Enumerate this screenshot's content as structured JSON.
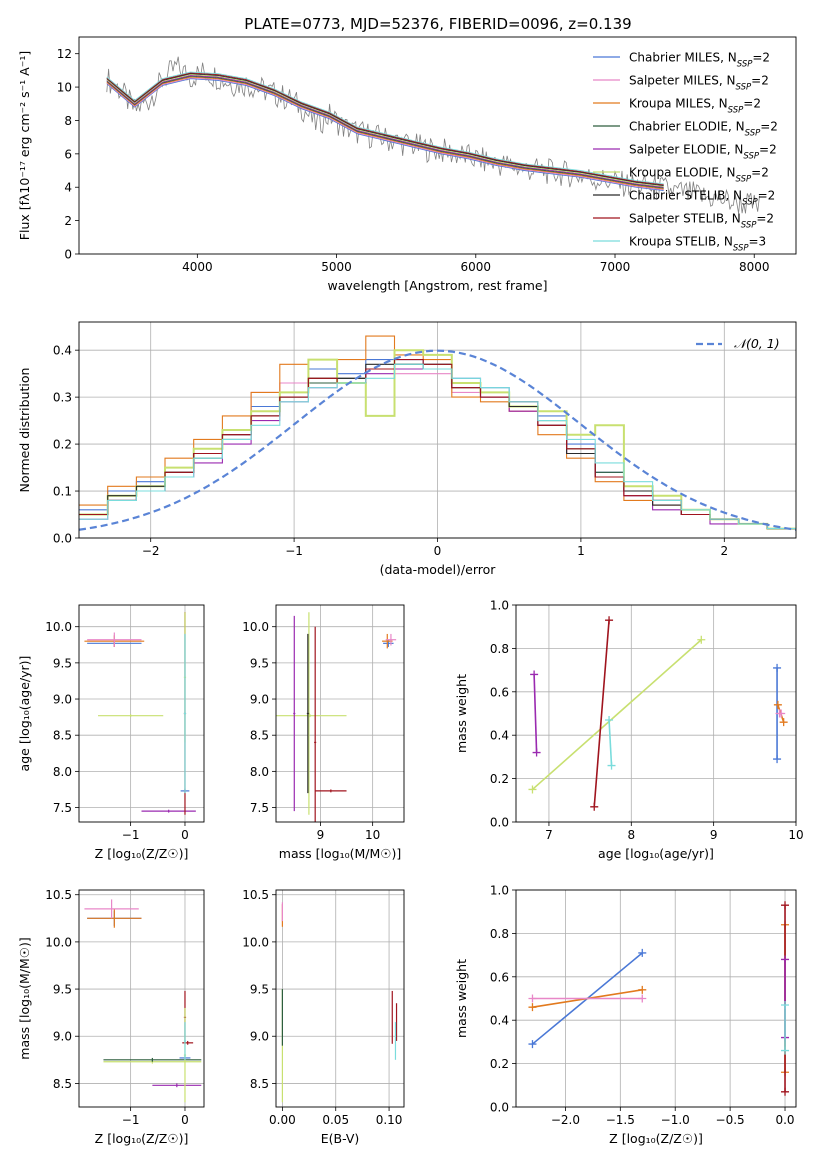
{
  "figure_title": "PLATE=0773, MJD=52376, FIBERID=0096, z=0.139",
  "model_colors": [
    "#4a78d6",
    "#e887c8",
    "#e27a1e",
    "#2e5e3e",
    "#9a2ab0",
    "#c8e070",
    "#2a2a2a",
    "#a0141e",
    "#7adcdc"
  ],
  "chart_data": [
    {
      "id": "spectrum",
      "type": "line",
      "xlabel": "wavelength [Angstrom, rest frame]",
      "ylabel": "Flux [fλ10⁻¹⁷ erg cm⁻² s⁻¹ A⁻¹]",
      "xlim": [
        3150,
        8300
      ],
      "ylim": [
        0,
        13
      ],
      "xticks": [
        4000,
        5000,
        6000,
        7000,
        8000
      ],
      "yticks": [
        0,
        2,
        4,
        6,
        8,
        10,
        12
      ],
      "grid": false,
      "legend_position": "top-right",
      "data_color": "#808080",
      "data_x": [
        3350,
        3450,
        3550,
        3650,
        3750,
        3850,
        3950,
        4050,
        4150,
        4250,
        4350,
        4450,
        4550,
        4650,
        4750,
        4850,
        4950,
        5050,
        5150,
        5250,
        5350,
        5450,
        5550,
        5650,
        5750,
        5850,
        5950,
        6050,
        6150,
        6250,
        6350,
        6450,
        6550,
        6650,
        6750,
        6850,
        6950,
        7050,
        7150,
        7250,
        7350,
        7450,
        7550,
        7650,
        7750,
        7850,
        7950,
        8050
      ],
      "data_y": [
        10.5,
        9.8,
        8.6,
        9.2,
        10.4,
        11.2,
        10.6,
        10.9,
        10.6,
        10.2,
        10.2,
        9.9,
        9.6,
        9.3,
        8.8,
        7.8,
        8.3,
        7.6,
        7.3,
        7.1,
        6.9,
        6.7,
        6.5,
        6.3,
        6.2,
        6.0,
        5.8,
        5.6,
        5.4,
        5.3,
        5.1,
        5.0,
        4.9,
        4.8,
        4.7,
        4.5,
        4.4,
        4.2,
        4.1,
        4.0,
        3.9,
        3.7,
        3.6,
        3.4,
        3.3,
        3.1,
        3.0,
        2.8
      ],
      "model_x": [
        3350,
        3550,
        3750,
        3950,
        4150,
        4350,
        4550,
        4750,
        4950,
        5150,
        5350,
        5550,
        5750,
        5950,
        6150,
        6350,
        6550,
        6750,
        6950,
        7150,
        7350
      ],
      "model_y": [
        10.4,
        9.0,
        10.3,
        10.7,
        10.6,
        10.3,
        9.7,
        8.9,
        8.3,
        7.4,
        7.0,
        6.6,
        6.2,
        5.9,
        5.5,
        5.2,
        5.0,
        4.8,
        4.5,
        4.2,
        4.0
      ],
      "series": [
        {
          "name": "Chabrier MILES, N",
          "sub": "SSP",
          "suffix": "=2"
        },
        {
          "name": "Salpeter MILES, N",
          "sub": "SSP",
          "suffix": "=2"
        },
        {
          "name": "Kroupa MILES, N",
          "sub": "SSP",
          "suffix": "=2"
        },
        {
          "name": "Chabrier ELODIE, N",
          "sub": "SSP",
          "suffix": "=2"
        },
        {
          "name": "Salpeter ELODIE, N",
          "sub": "SSP",
          "suffix": "=2"
        },
        {
          "name": "Kroupa ELODIE, N",
          "sub": "SSP",
          "suffix": "=2"
        },
        {
          "name": "Chabrier STELIB, N",
          "sub": "SSP",
          "suffix": "=2"
        },
        {
          "name": "Salpeter STELIB, N",
          "sub": "SSP",
          "suffix": "=2"
        },
        {
          "name": "Kroupa STELIB, N",
          "sub": "SSP",
          "suffix": "=3"
        }
      ]
    },
    {
      "id": "residuals",
      "type": "line",
      "xlabel": "(data-model)/error",
      "ylabel": "Normed distribution",
      "xlim": [
        -2.5,
        2.5
      ],
      "ylim": [
        0,
        0.46
      ],
      "xticks": [
        -2,
        -1,
        0,
        1,
        2
      ],
      "yticks": [
        0.0,
        0.1,
        0.2,
        0.3,
        0.4
      ],
      "grid": true,
      "legend_position": "top-right",
      "gaussian_label": "𝒩(0, 1)",
      "gaussian_color": "#5a84d6",
      "bin_edges": [
        -2.5,
        -2.3,
        -2.1,
        -1.9,
        -1.7,
        -1.5,
        -1.3,
        -1.1,
        -0.9,
        -0.7,
        -0.5,
        -0.3,
        -0.1,
        0.1,
        0.3,
        0.5,
        0.7,
        0.9,
        1.1,
        1.3,
        1.5,
        1.7,
        1.9,
        2.1,
        2.3,
        2.5
      ],
      "hist": [
        [
          0.06,
          0.1,
          0.12,
          0.15,
          0.19,
          0.23,
          0.28,
          0.31,
          0.36,
          0.35,
          0.38,
          0.38,
          0.37,
          0.34,
          0.32,
          0.29,
          0.26,
          0.2,
          0.14,
          0.1,
          0.08,
          0.06,
          0.04,
          0.03,
          0.02
        ],
        [
          0.05,
          0.09,
          0.11,
          0.14,
          0.18,
          0.22,
          0.31,
          0.33,
          0.34,
          0.34,
          0.36,
          0.35,
          0.35,
          0.31,
          0.3,
          0.27,
          0.24,
          0.18,
          0.13,
          0.09,
          0.07,
          0.05,
          0.04,
          0.03,
          0.02
        ],
        [
          0.07,
          0.11,
          0.13,
          0.17,
          0.21,
          0.26,
          0.31,
          0.37,
          0.34,
          0.38,
          0.43,
          0.39,
          0.38,
          0.3,
          0.29,
          0.27,
          0.22,
          0.17,
          0.12,
          0.08,
          0.07,
          0.05,
          0.04,
          0.03,
          0.02
        ],
        [
          0.05,
          0.08,
          0.1,
          0.14,
          0.17,
          0.21,
          0.26,
          0.3,
          0.33,
          0.34,
          0.36,
          0.37,
          0.37,
          0.33,
          0.31,
          0.28,
          0.25,
          0.19,
          0.14,
          0.1,
          0.08,
          0.06,
          0.04,
          0.03,
          0.02
        ],
        [
          0.04,
          0.08,
          0.1,
          0.13,
          0.16,
          0.2,
          0.25,
          0.29,
          0.32,
          0.33,
          0.35,
          0.36,
          0.36,
          0.33,
          0.3,
          0.27,
          0.24,
          0.18,
          0.13,
          0.09,
          0.06,
          0.05,
          0.03,
          0.03,
          0.02
        ],
        [
          0.05,
          0.09,
          0.11,
          0.15,
          0.19,
          0.23,
          0.27,
          0.31,
          0.38,
          0.33,
          0.26,
          0.4,
          0.39,
          0.33,
          0.31,
          0.28,
          0.27,
          0.22,
          0.24,
          0.11,
          0.09,
          0.06,
          0.04,
          0.03,
          0.02
        ],
        [
          0.05,
          0.09,
          0.11,
          0.14,
          0.18,
          0.22,
          0.26,
          0.3,
          0.34,
          0.34,
          0.37,
          0.37,
          0.36,
          0.32,
          0.3,
          0.28,
          0.24,
          0.18,
          0.13,
          0.1,
          0.07,
          0.05,
          0.04,
          0.03,
          0.02
        ],
        [
          0.05,
          0.08,
          0.1,
          0.14,
          0.18,
          0.22,
          0.26,
          0.3,
          0.34,
          0.33,
          0.36,
          0.38,
          0.37,
          0.32,
          0.3,
          0.29,
          0.24,
          0.19,
          0.13,
          0.09,
          0.08,
          0.05,
          0.04,
          0.03,
          0.02
        ],
        [
          0.04,
          0.08,
          0.1,
          0.13,
          0.17,
          0.21,
          0.24,
          0.29,
          0.32,
          0.33,
          0.34,
          0.37,
          0.36,
          0.34,
          0.32,
          0.29,
          0.25,
          0.21,
          0.16,
          0.12,
          0.08,
          0.06,
          0.04,
          0.03,
          0.02
        ]
      ]
    },
    {
      "id": "z-age",
      "type": "scatter",
      "xlabel": "Z [log₁₀(Z/Z☉)]",
      "ylabel": "age  [log₁₀(age/yr)]",
      "xlim": [
        -1.95,
        0.35
      ],
      "ylim": [
        7.3,
        10.3
      ],
      "xticks": [
        -1,
        0
      ],
      "yticks": [
        7.5,
        8.0,
        8.5,
        9.0,
        9.5,
        10.0
      ],
      "grid": true,
      "points": [
        {
          "series": 0,
          "x": -1.3,
          "y": 9.77,
          "xerr": 0.5,
          "yerr": 0.05
        },
        {
          "series": 2,
          "x": -1.3,
          "y": 9.8,
          "xerr": 0.55,
          "yerr": 0.08
        },
        {
          "series": 1,
          "x": -1.3,
          "y": 9.82,
          "xerr": 0.5,
          "yerr": 0.1
        },
        {
          "series": 5,
          "x": -1.0,
          "y": 8.77,
          "xerr": 0.6,
          "yerr": 0.02
        },
        {
          "series": 4,
          "x": -0.3,
          "y": 7.45,
          "xerr": 0.5,
          "yerr": 0.02
        },
        {
          "series": 0,
          "x": 0.0,
          "y": 7.73,
          "xerr": 0.08,
          "yerr": 0.03
        },
        {
          "series": 7,
          "x": 0.0,
          "y": 8.8,
          "xerr": 0.02,
          "yerr": 1.4
        },
        {
          "series": 5,
          "x": 0.0,
          "y": 9.3,
          "xerr": 0.02,
          "yerr": 0.9
        },
        {
          "series": 8,
          "x": 0.0,
          "y": 8.8,
          "xerr": 0.02,
          "yerr": 1.1
        }
      ]
    },
    {
      "id": "mass-age",
      "type": "scatter",
      "xlabel": "mass [log₁₀(M/M☉)]",
      "ylabel": "",
      "xlim": [
        8.15,
        10.6
      ],
      "ylim": [
        7.3,
        10.3
      ],
      "xticks": [
        9,
        10
      ],
      "yticks": [
        7.5,
        8.0,
        8.5,
        9.0,
        9.5,
        10.0
      ],
      "grid": true,
      "points": [
        {
          "series": 0,
          "x": 10.3,
          "y": 9.77,
          "xerr": 0.1,
          "yerr": 0.05
        },
        {
          "series": 2,
          "x": 10.28,
          "y": 9.8,
          "xerr": 0.1,
          "yerr": 0.1
        },
        {
          "series": 1,
          "x": 10.35,
          "y": 9.82,
          "xerr": 0.1,
          "yerr": 0.08
        },
        {
          "series": 5,
          "x": 8.8,
          "y": 8.77,
          "xerr": 0.7,
          "yerr": 0.02
        },
        {
          "series": 4,
          "x": 8.5,
          "y": 8.8,
          "xerr": 0.02,
          "yerr": 1.35
        },
        {
          "series": 5,
          "x": 8.78,
          "y": 8.8,
          "xerr": 0.02,
          "yerr": 1.4
        },
        {
          "series": 7,
          "x": 8.9,
          "y": 8.4,
          "xerr": 0.02,
          "yerr": 1.6
        },
        {
          "series": 7,
          "x": 9.2,
          "y": 7.73,
          "xerr": 0.3,
          "yerr": 0.02
        },
        {
          "series": 6,
          "x": 8.76,
          "y": 8.8,
          "xerr": 0.02,
          "yerr": 1.1
        }
      ]
    },
    {
      "id": "age-weight",
      "type": "line",
      "xlabel": "age  [log₁₀(age/yr)]",
      "ylabel": "mass weight",
      "xlim": [
        6.6,
        10.0
      ],
      "ylim": [
        0,
        1.0
      ],
      "xticks": [
        7,
        8,
        9,
        10
      ],
      "yticks": [
        0.0,
        0.2,
        0.4,
        0.6,
        0.8,
        1.0
      ],
      "grid": true,
      "lines": [
        {
          "series": 0,
          "x": [
            9.77,
            9.77
          ],
          "y": [
            0.29,
            0.71
          ]
        },
        {
          "series": 2,
          "x": [
            9.78,
            9.85
          ],
          "y": [
            0.54,
            0.46
          ]
        },
        {
          "series": 1,
          "x": [
            9.8,
            9.82
          ],
          "y": [
            0.5,
            0.5
          ]
        },
        {
          "series": 4,
          "x": [
            6.82,
            6.85
          ],
          "y": [
            0.68,
            0.32
          ]
        },
        {
          "series": 5,
          "x": [
            6.8,
            8.85
          ],
          "y": [
            0.15,
            0.84
          ]
        },
        {
          "series": 7,
          "x": [
            7.55,
            7.73
          ],
          "y": [
            0.07,
            0.93
          ]
        },
        {
          "series": 8,
          "x": [
            7.73,
            7.76
          ],
          "y": [
            0.47,
            0.26
          ]
        }
      ]
    },
    {
      "id": "z-mass",
      "type": "scatter",
      "xlabel": "Z [log₁₀(Z/Z☉)]",
      "ylabel": "mass [log₁₀(M/M☉)]",
      "xlim": [
        -1.95,
        0.35
      ],
      "ylim": [
        8.25,
        10.55
      ],
      "xticks": [
        -1,
        0
      ],
      "yticks": [
        8.5,
        9.0,
        9.5,
        10.0,
        10.5
      ],
      "grid": true,
      "points": [
        {
          "series": 0,
          "x": -1.3,
          "y": 10.25,
          "xerr": 0.5,
          "yerr": 0.08
        },
        {
          "series": 2,
          "x": -1.3,
          "y": 10.25,
          "xerr": 0.5,
          "yerr": 0.1
        },
        {
          "series": 1,
          "x": -1.35,
          "y": 10.35,
          "xerr": 0.5,
          "yerr": 0.1
        },
        {
          "series": 5,
          "x": -0.6,
          "y": 8.73,
          "xerr": 0.9,
          "yerr": 0.02
        },
        {
          "series": 3,
          "x": -0.6,
          "y": 8.75,
          "xerr": 0.9,
          "yerr": 0.02
        },
        {
          "series": 4,
          "x": -0.15,
          "y": 8.48,
          "xerr": 0.45,
          "yerr": 0.02
        },
        {
          "series": 7,
          "x": 0.0,
          "y": 9.2,
          "xerr": 0.02,
          "yerr": 0.28
        },
        {
          "series": 7,
          "x": 0.05,
          "y": 8.93,
          "xerr": 0.1,
          "yerr": 0.02
        },
        {
          "series": 0,
          "x": 0.0,
          "y": 8.77,
          "xerr": 0.1,
          "yerr": 0.02
        },
        {
          "series": 5,
          "x": 0.0,
          "y": 8.8,
          "xerr": 0.02,
          "yerr": 0.5
        },
        {
          "series": 8,
          "x": 0.0,
          "y": 8.95,
          "xerr": 0.02,
          "yerr": 0.2
        }
      ]
    },
    {
      "id": "ebv-mass",
      "type": "scatter",
      "xlabel": "E(B-V)",
      "ylabel": "",
      "xlim": [
        -0.006,
        0.114
      ],
      "ylim": [
        8.25,
        10.55
      ],
      "xticks": [
        0.0,
        0.05,
        0.1
      ],
      "yticks": [
        8.5,
        9.0,
        9.5,
        10.0,
        10.5
      ],
      "grid": true,
      "points": [
        {
          "series": 2,
          "x": 0.0,
          "y": 10.28,
          "xerr": 0.0,
          "yerr": 0.12
        },
        {
          "series": 1,
          "x": 0.0,
          "y": 10.32,
          "xerr": 0.0,
          "yerr": 0.1
        },
        {
          "series": 5,
          "x": 0.0,
          "y": 8.9,
          "xerr": 0.0,
          "yerr": 0.6
        },
        {
          "series": 3,
          "x": 0.0,
          "y": 9.2,
          "xerr": 0.0,
          "yerr": 0.3
        },
        {
          "series": 7,
          "x": 0.103,
          "y": 9.2,
          "xerr": 0.0,
          "yerr": 0.28
        },
        {
          "series": 7,
          "x": 0.107,
          "y": 9.15,
          "xerr": 0.0,
          "yerr": 0.2
        },
        {
          "series": 8,
          "x": 0.106,
          "y": 8.95,
          "xerr": 0.0,
          "yerr": 0.2
        }
      ]
    },
    {
      "id": "z-weight",
      "type": "line",
      "xlabel": "Z [log₁₀(Z/Z☉)]",
      "ylabel": "mass weight",
      "xlim": [
        -2.45,
        0.1
      ],
      "ylim": [
        0,
        1.0
      ],
      "xticks": [
        -2.0,
        -1.5,
        -1.0,
        -0.5,
        0.0
      ],
      "yticks": [
        0.0,
        0.2,
        0.4,
        0.6,
        0.8,
        1.0
      ],
      "grid": true,
      "lines": [
        {
          "series": 0,
          "x": [
            -2.3,
            -1.3
          ],
          "y": [
            0.29,
            0.71
          ]
        },
        {
          "series": 2,
          "x": [
            -2.3,
            -1.3
          ],
          "y": [
            0.46,
            0.54
          ]
        },
        {
          "series": 1,
          "x": [
            -2.3,
            -1.3
          ],
          "y": [
            0.5,
            0.5
          ]
        },
        {
          "series": 2,
          "x": [
            0.0,
            0.0
          ],
          "y": [
            0.16,
            0.84
          ]
        },
        {
          "series": 7,
          "x": [
            0.0,
            0.0
          ],
          "y": [
            0.07,
            0.93
          ]
        },
        {
          "series": 4,
          "x": [
            0.0,
            0.0
          ],
          "y": [
            0.32,
            0.68
          ]
        },
        {
          "series": 8,
          "x": [
            0.0,
            0.0
          ],
          "y": [
            0.26,
            0.47
          ]
        }
      ]
    }
  ]
}
